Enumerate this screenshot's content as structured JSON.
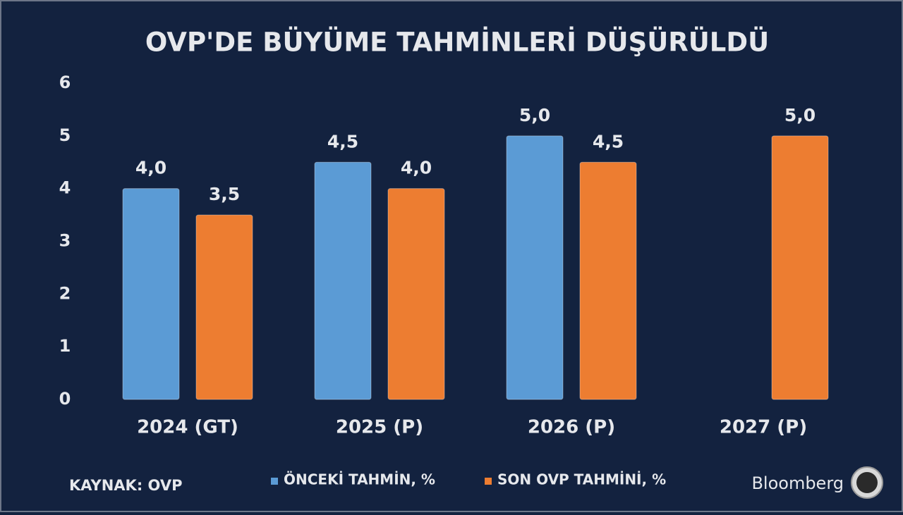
{
  "chart_data": {
    "type": "bar",
    "title": "OVP'DE BÜYÜME TAHMİNLERİ DÜŞÜRÜLDÜ",
    "categories": [
      "2024 (GT)",
      "2025 (P)",
      "2026 (P)",
      "2027 (P)"
    ],
    "series": [
      {
        "name": "ÖNCEKİ TAHMİN, %",
        "color": "#5b9bd5",
        "values": [
          4.0,
          4.5,
          5.0,
          null
        ],
        "value_labels": [
          "4,0",
          "4,5",
          "5,0",
          null
        ]
      },
      {
        "name": "SON OVP TAHMİNİ, %",
        "color": "#ed7d31",
        "values": [
          3.5,
          4.0,
          4.5,
          5.0
        ],
        "value_labels": [
          "3,5",
          "4,0",
          "4,5",
          "5,0"
        ]
      }
    ],
    "ylim": [
      0,
      6
    ],
    "yticks": [
      0,
      1,
      2,
      3,
      4,
      5,
      6
    ],
    "grid": false,
    "source": "KAYNAK: OVP",
    "brand": "Bloomberg"
  }
}
